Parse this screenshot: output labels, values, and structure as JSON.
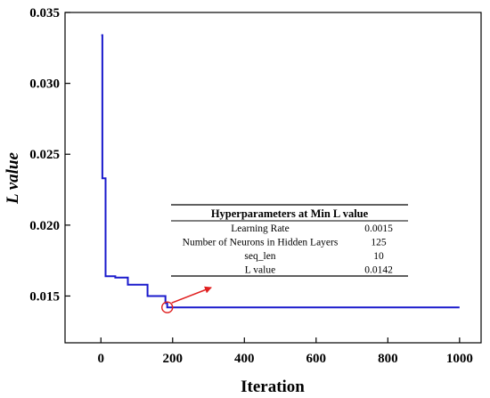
{
  "chart_data": {
    "type": "line",
    "xlabel": "Iteration",
    "ylabel": "L value",
    "xlim": [
      -100,
      1060
    ],
    "ylim": [
      0.0117,
      0.035
    ],
    "x_ticks": [
      0,
      200,
      400,
      600,
      800,
      1000
    ],
    "y_ticks": [
      0.015,
      0.02,
      0.025,
      0.03,
      0.035
    ],
    "x_tick_labels": [
      "0",
      "200",
      "400",
      "600",
      "800",
      "1000"
    ],
    "y_tick_labels": [
      "0.015",
      "0.020",
      "0.025",
      "0.030",
      "0.035"
    ],
    "grid": false,
    "series": [
      {
        "color": "#1a1acc",
        "step": true,
        "x": [
          1,
          4,
          4,
          13,
          13,
          40,
          40,
          75,
          75,
          130,
          130,
          180,
          180,
          185,
          185,
          1000
        ],
        "y": [
          0.0334,
          0.0334,
          0.0233,
          0.0233,
          0.0164,
          0.0164,
          0.0163,
          0.0163,
          0.0158,
          0.0158,
          0.015,
          0.015,
          0.0145,
          0.0145,
          0.0142,
          0.0142
        ]
      }
    ],
    "annotation": {
      "marker_color": "#e02020",
      "arrow_color": "#e02020",
      "point": [
        185,
        0.0142
      ],
      "table": {
        "title": "Hyperparameters at Min L value",
        "rows": [
          [
            "Learning Rate",
            "0.0015"
          ],
          [
            "Number of Neurons in Hidden Layers",
            "125"
          ],
          [
            "seq_len",
            "10"
          ],
          [
            "L value",
            "0.0142"
          ]
        ]
      }
    }
  }
}
